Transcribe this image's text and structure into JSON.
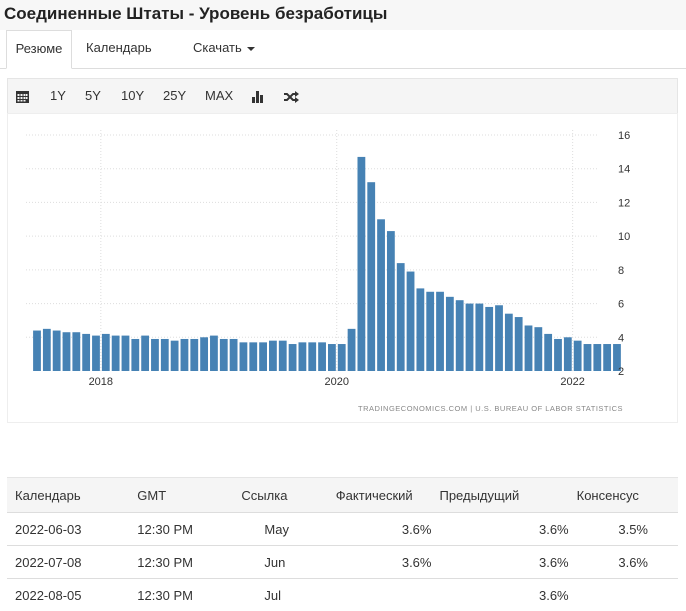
{
  "header": {
    "title": "Соединенные Штаты - Уровень безработицы"
  },
  "tabs": [
    {
      "label": "Резюме"
    },
    {
      "label": "Календарь"
    },
    {
      "label": "Скачать"
    }
  ],
  "toolbar": {
    "ranges": [
      "1Y",
      "5Y",
      "10Y",
      "25Y",
      "MAX"
    ],
    "icons": [
      "calendar-icon",
      "bar-chart-icon",
      "shuffle-icon"
    ]
  },
  "chart_data": {
    "type": "bar",
    "title": "",
    "x_start": "2017-06",
    "x_end": "2022-05",
    "xlabel": "",
    "ylabel": "",
    "ylim": [
      2,
      16
    ],
    "yticks": [
      "2",
      "4",
      "6",
      "8",
      "10",
      "12",
      "14",
      "16"
    ],
    "xticks": [
      "2018",
      "2020",
      "2022"
    ],
    "grid": true,
    "color": "#4682b4",
    "values": [
      4.4,
      4.5,
      4.4,
      4.3,
      4.3,
      4.2,
      4.1,
      4.2,
      4.1,
      4.1,
      3.9,
      4.1,
      3.9,
      3.9,
      3.8,
      3.9,
      3.9,
      4.0,
      4.1,
      3.9,
      3.9,
      3.7,
      3.7,
      3.7,
      3.8,
      3.8,
      3.6,
      3.7,
      3.7,
      3.7,
      3.6,
      3.6,
      4.5,
      14.7,
      13.2,
      11.0,
      10.3,
      8.4,
      7.9,
      6.9,
      6.7,
      6.7,
      6.4,
      6.2,
      6.0,
      6.0,
      5.8,
      5.9,
      5.4,
      5.2,
      4.7,
      4.6,
      4.2,
      3.9,
      4.0,
      3.8,
      3.6,
      3.6,
      3.6,
      3.6
    ],
    "source": "TRADINGECONOMICS.COM  |  U.S. BUREAU OF LABOR STATISTICS"
  },
  "table": {
    "headers": [
      "Календарь",
      "GMT",
      "Ссылка",
      "Фактический",
      "Предыдущий",
      "Консенсус"
    ],
    "rows": [
      [
        "2022-06-03",
        "12:30 PM",
        "May",
        "3.6%",
        "3.6%",
        "3.5%"
      ],
      [
        "2022-07-08",
        "12:30 PM",
        "Jun",
        "3.6%",
        "3.6%",
        "3.6%"
      ],
      [
        "2022-08-05",
        "12:30 PM",
        "Jul",
        "",
        "3.6%",
        ""
      ]
    ]
  }
}
